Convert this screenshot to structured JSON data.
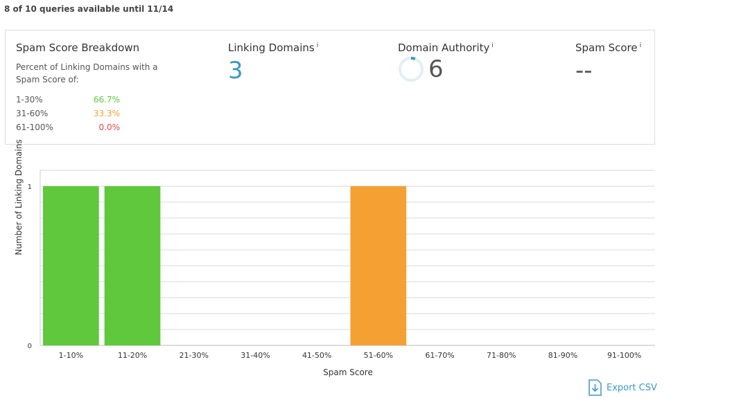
{
  "quota_text": "8 of 10 queries available until 11/14",
  "breakdown": {
    "title": "Spam Score Breakdown",
    "description": "Percent of Linking Domains with a Spam Score of:",
    "ranges": [
      {
        "label": "1-30%",
        "value": "66.7%",
        "color": "#5fc83c"
      },
      {
        "label": "31-60%",
        "value": "33.3%",
        "color": "#f5a033"
      },
      {
        "label": "61-100%",
        "value": "0.0%",
        "color": "#e8464a"
      }
    ]
  },
  "metrics": {
    "linking_domains": {
      "title": "Linking Domains",
      "info": "i",
      "value": "3"
    },
    "domain_authority": {
      "title": "Domain Authority",
      "info": "i",
      "value": "6",
      "score_fraction": 0.06
    },
    "spam_score": {
      "title": "Spam Score",
      "info": "i",
      "value": "--"
    }
  },
  "chart_data": {
    "type": "bar",
    "categories": [
      "1-10%",
      "11-20%",
      "21-30%",
      "31-40%",
      "41-50%",
      "51-60%",
      "61-70%",
      "71-80%",
      "81-90%",
      "91-100%"
    ],
    "values": [
      1,
      1,
      0,
      0,
      0,
      1,
      0,
      0,
      0,
      0
    ],
    "bar_colors": [
      "#5fc83c",
      "#5fc83c",
      "#5fc83c",
      "#f5a033",
      "#f5a033",
      "#f5a033",
      "#e8464a",
      "#e8464a",
      "#e8464a",
      "#e8464a"
    ],
    "xlabel": "Spam Score",
    "ylabel": "Number of Linking Domains",
    "ylim": [
      0,
      1
    ],
    "yticks": [
      "0",
      "1"
    ],
    "grid": true
  },
  "export": {
    "label": "Export CSV",
    "icon": "download-file-icon"
  },
  "colors": {
    "accent": "#3d98c4",
    "green": "#5fc83c",
    "orange": "#f5a033",
    "red": "#e8464a"
  }
}
